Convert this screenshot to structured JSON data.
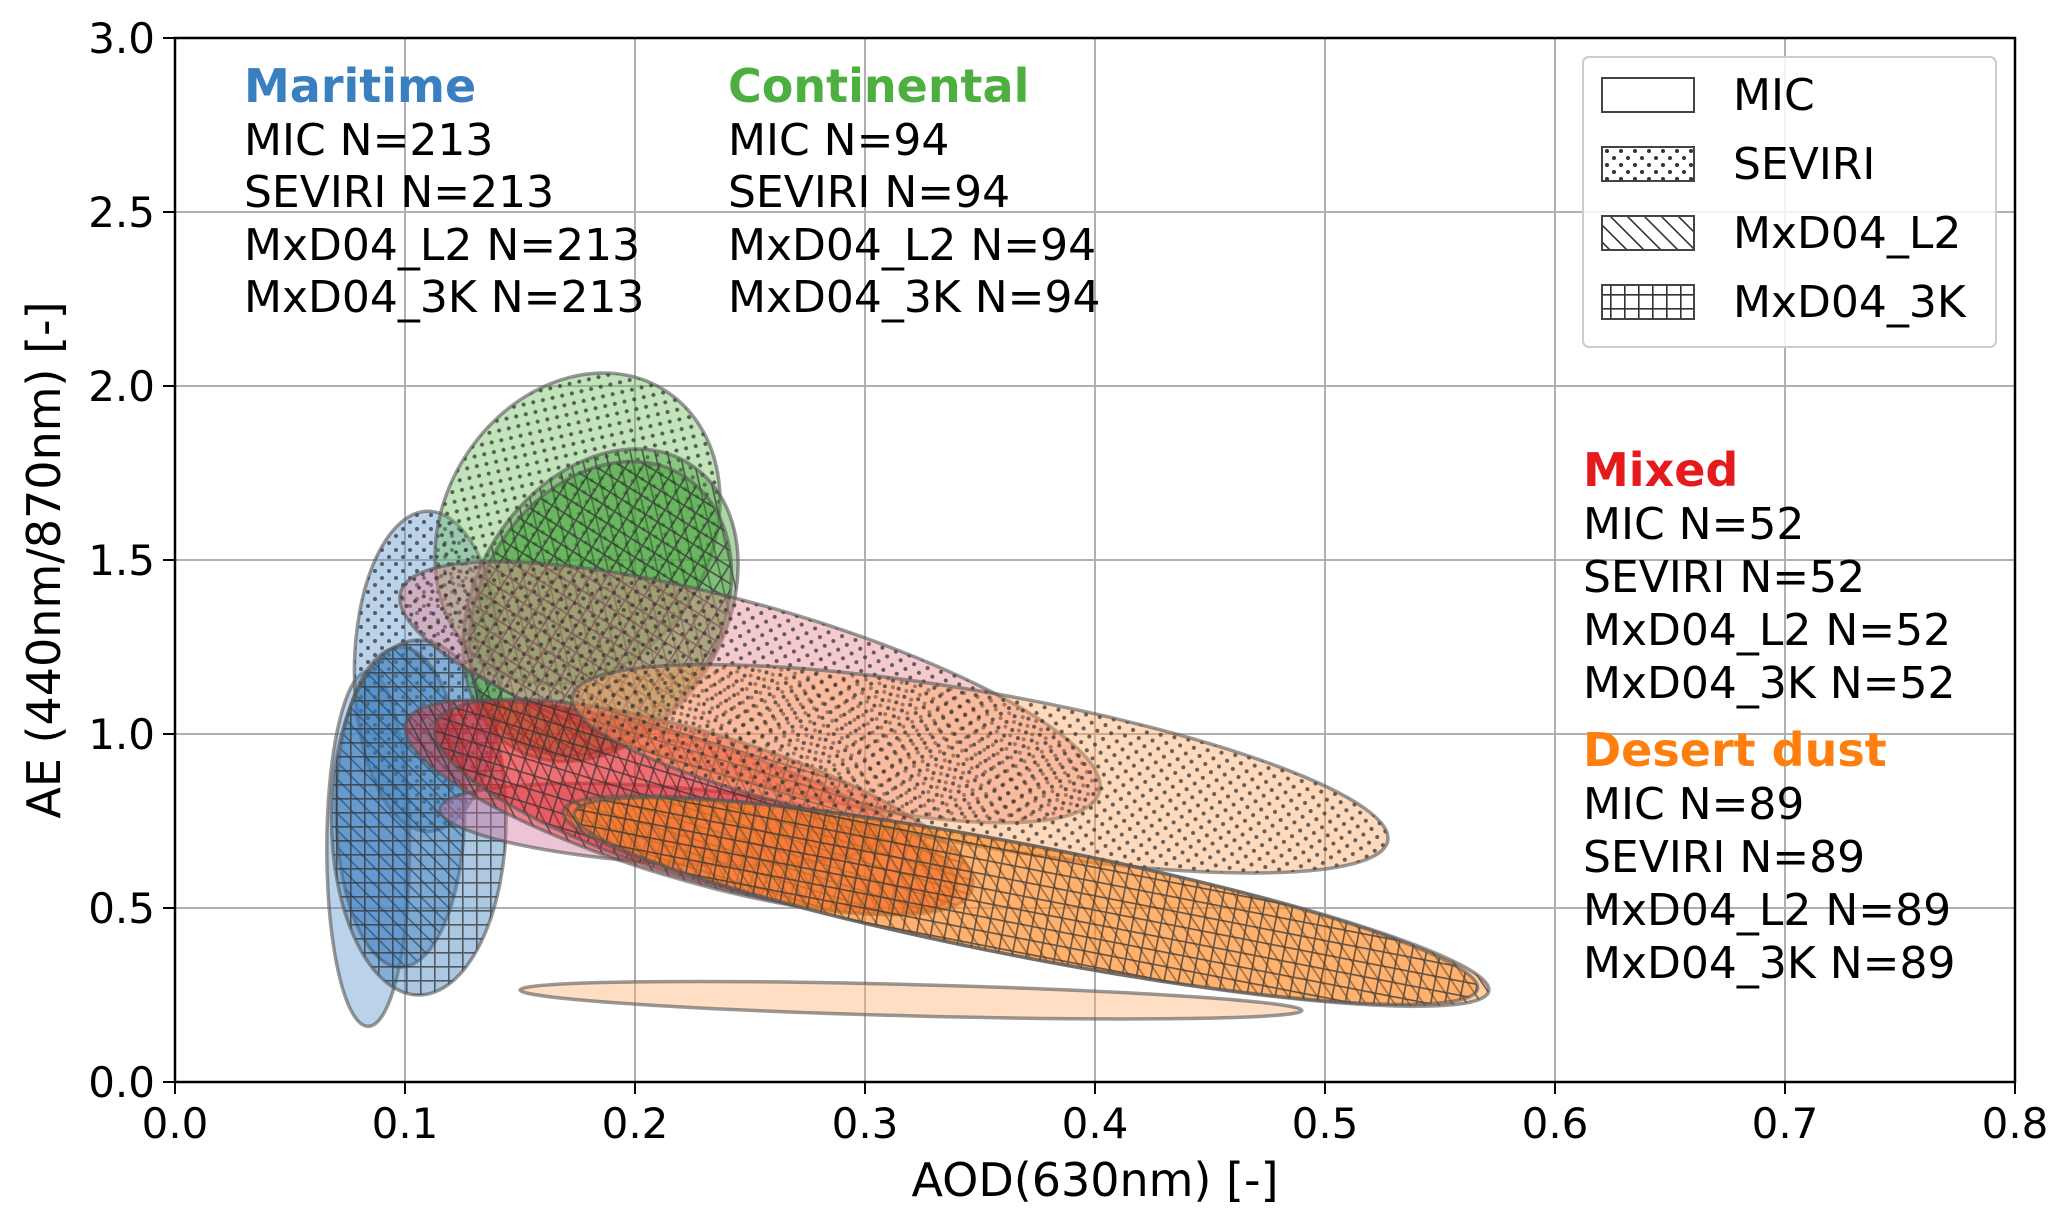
{
  "chart_data": {
    "type": "scatter",
    "subtype": "confidence-ellipses",
    "title": "",
    "xlabel": "AOD(630nm) [-]",
    "ylabel": "AE (440nm/870nm) [-]",
    "xlim": [
      0.0,
      0.8
    ],
    "ylim": [
      0.0,
      3.0
    ],
    "xticks": [
      0.0,
      0.1,
      0.2,
      0.3,
      0.4,
      0.5,
      0.6,
      0.7,
      0.8
    ],
    "yticks": [
      0.0,
      0.5,
      1.0,
      1.5,
      2.0,
      2.5,
      3.0
    ],
    "xtick_labels": [
      "0.0",
      "0.1",
      "0.2",
      "0.3",
      "0.4",
      "0.5",
      "0.6",
      "0.7",
      "0.8"
    ],
    "ytick_labels": [
      "0.0",
      "0.5",
      "1.0",
      "1.5",
      "2.0",
      "2.5",
      "3.0"
    ],
    "grid": true,
    "legend_position": "top-right",
    "legend": [
      {
        "label": "MIC",
        "hatch": "none"
      },
      {
        "label": "SEVIRI",
        "hatch": "dots"
      },
      {
        "label": "MxD04_L2",
        "hatch": "diagonal"
      },
      {
        "label": "MxD04_3K",
        "hatch": "grid"
      }
    ],
    "annotations": [
      {
        "group": "Maritime",
        "color": "#3a7fbf",
        "position": "top-left",
        "lines": [
          "MIC N=213",
          "SEVIRI N=213",
          "MxD04_L2 N=213",
          "MxD04_3K N=213"
        ]
      },
      {
        "group": "Continental",
        "color": "#4caf3f",
        "position": "top-center",
        "lines": [
          "MIC N=94",
          "SEVIRI N=94",
          "MxD04_L2 N=94",
          "MxD04_3K N=94"
        ]
      },
      {
        "group": "Mixed",
        "color": "#e41a1c",
        "position": "right",
        "lines": [
          "MIC N=52",
          "SEVIRI N=52",
          "MxD04_L2 N=52",
          "MxD04_3K N=52"
        ]
      },
      {
        "group": "Desert dust",
        "color": "#ff7f0e",
        "position": "lower-right",
        "lines": [
          "MIC N=89",
          "SEVIRI N=89",
          "MxD04_L2 N=89",
          "MxD04_3K N=89"
        ]
      }
    ],
    "series": [
      {
        "group": "Maritime",
        "product": "MIC",
        "hatch": "none",
        "color": "#5e96cc",
        "center": [
          0.084,
          0.67
        ],
        "x_radius": 0.018,
        "y_radius": 0.51,
        "angle_deg": 0
      },
      {
        "group": "Maritime",
        "product": "SEVIRI",
        "hatch": "dots",
        "color": "#5e96cc",
        "center": [
          0.11,
          1.18
        ],
        "x_radius": 0.032,
        "y_radius": 0.46,
        "angle_deg": 0
      },
      {
        "group": "Maritime",
        "product": "MxD04_L2",
        "hatch": "diagonal",
        "color": "#3a7fbf",
        "center": [
          0.098,
          0.79
        ],
        "x_radius": 0.028,
        "y_radius": 0.46,
        "angle_deg": 0
      },
      {
        "group": "Maritime",
        "product": "MxD04_3K",
        "hatch": "grid",
        "color": "#3a7fbf",
        "center": [
          0.106,
          0.76
        ],
        "x_radius": 0.038,
        "y_radius": 0.51,
        "angle_deg": 0
      },
      {
        "group": "Continental",
        "product": "SEVIRI",
        "hatch": "dots",
        "color": "#6bbf5c",
        "center": [
          0.175,
          1.59
        ],
        "x_radius": 0.058,
        "y_radius": 0.47,
        "angle_deg": -32
      },
      {
        "group": "Continental",
        "product": "MxD04_L2",
        "hatch": "diagonal",
        "color": "#3e9e33",
        "center": [
          0.185,
          1.37
        ],
        "x_radius": 0.054,
        "y_radius": 0.48,
        "angle_deg": -32
      },
      {
        "group": "Continental",
        "product": "MxD04_3K",
        "hatch": "grid",
        "color": "#3e9e33",
        "center": [
          0.185,
          1.36
        ],
        "x_radius": 0.052,
        "y_radius": 0.45,
        "angle_deg": -32
      },
      {
        "group": "Mixed",
        "product": "MIC",
        "hatch": "none",
        "color": "#d3739a",
        "center": [
          0.21,
          0.74
        ],
        "x_radius": 0.095,
        "y_radius": 0.11,
        "angle_deg": -4
      },
      {
        "group": "Mixed",
        "product": "SEVIRI",
        "hatch": "dots",
        "color": "#e8808c",
        "center": [
          0.25,
          1.12
        ],
        "x_radius": 0.158,
        "y_radius": 0.25,
        "angle_deg": -16
      },
      {
        "group": "Mixed",
        "product": "MxD04_L2",
        "hatch": "diagonal",
        "color": "#e42528",
        "center": [
          0.22,
          0.79
        ],
        "x_radius": 0.125,
        "y_radius": 0.2,
        "angle_deg": -17
      },
      {
        "group": "Mixed",
        "product": "MxD04_3K",
        "hatch": "grid",
        "color": "#e42528",
        "center": [
          0.23,
          0.79
        ],
        "x_radius": 0.122,
        "y_radius": 0.21,
        "angle_deg": -17
      },
      {
        "group": "Desert dust",
        "product": "MIC",
        "hatch": "none",
        "color": "#ffb070",
        "center": [
          0.32,
          0.235
        ],
        "x_radius": 0.17,
        "y_radius": 0.045,
        "angle_deg": -1.5
      },
      {
        "group": "Desert dust",
        "product": "SEVIRI",
        "hatch": "dots",
        "color": "#ffa45c",
        "center": [
          0.35,
          0.9
        ],
        "x_radius": 0.18,
        "y_radius": 0.22,
        "angle_deg": -10
      },
      {
        "group": "Desert dust",
        "product": "MxD04_L2",
        "hatch": "diagonal",
        "color": "#ff8a24",
        "center": [
          0.37,
          0.52
        ],
        "x_radius": 0.205,
        "y_radius": 0.16,
        "angle_deg": -11
      },
      {
        "group": "Desert dust",
        "product": "MxD04_3K",
        "hatch": "grid",
        "color": "#ff8a24",
        "center": [
          0.37,
          0.52
        ],
        "x_radius": 0.2,
        "y_radius": 0.16,
        "angle_deg": -11
      }
    ]
  }
}
